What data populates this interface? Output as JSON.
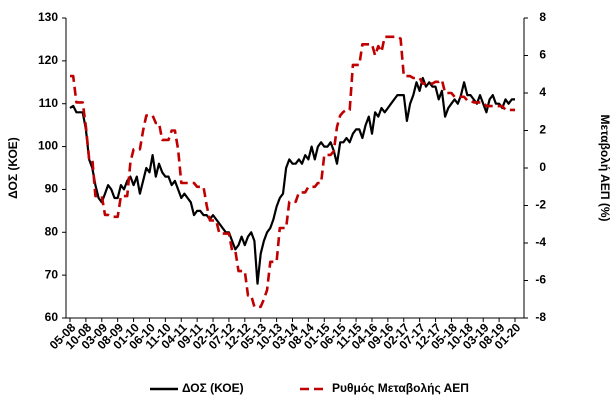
{
  "chart_data": {
    "type": "line",
    "y_label": "ΔΟΣ (ΚΟΕ)",
    "y2_label": "Μεταβολή ΑΕΠ (%)",
    "categories": [
      "05-08",
      null,
      null,
      null,
      null,
      "10-08",
      null,
      null,
      null,
      null,
      "03-09",
      null,
      null,
      null,
      null,
      "08-09",
      null,
      null,
      null,
      null,
      "01-10",
      null,
      null,
      null,
      null,
      "06-10",
      null,
      null,
      null,
      null,
      "11-10",
      null,
      null,
      null,
      null,
      "04-11",
      null,
      null,
      null,
      null,
      "09-11",
      null,
      null,
      null,
      null,
      "02-12",
      null,
      null,
      null,
      null,
      "07-12",
      null,
      null,
      null,
      null,
      "12-12",
      null,
      null,
      null,
      null,
      "05-13",
      null,
      null,
      null,
      null,
      "10-13",
      null,
      null,
      null,
      null,
      "03-14",
      null,
      null,
      null,
      null,
      "08-14",
      null,
      null,
      null,
      null,
      "01-15",
      null,
      null,
      null,
      null,
      "06-15",
      null,
      null,
      null,
      null,
      "11-15",
      null,
      null,
      null,
      null,
      "04-16",
      null,
      null,
      null,
      null,
      "09-16",
      null,
      null,
      null,
      null,
      "02-17",
      null,
      null,
      null,
      null,
      "07-17",
      null,
      null,
      null,
      null,
      "12-17",
      null,
      null,
      null,
      null,
      "05-18",
      null,
      null,
      null,
      null,
      "10-18",
      null,
      null,
      null,
      null,
      "03-19",
      null,
      null,
      null,
      null,
      "08-19",
      null,
      null,
      null,
      null,
      "01-20"
    ],
    "series": [
      {
        "name": "ΔΟΣ (ΚΟΕ)",
        "color": "#000000",
        "dashed": false,
        "values": [
          109,
          109.5,
          108,
          108,
          108,
          104,
          97,
          95,
          91,
          88,
          87,
          89,
          91,
          90,
          88,
          88,
          91,
          90,
          92,
          93,
          91,
          93,
          89,
          92,
          95,
          94,
          98,
          93,
          96,
          94,
          93,
          93,
          91,
          92,
          90,
          88,
          89,
          88,
          87,
          84,
          85,
          85,
          84,
          84,
          83,
          84,
          83,
          82,
          81,
          80,
          80,
          78,
          76,
          77,
          79,
          77,
          79,
          80,
          78,
          68,
          75,
          78,
          80,
          81,
          83,
          86,
          88,
          89,
          95,
          97,
          96,
          96,
          97,
          96,
          98,
          97,
          100,
          97,
          100,
          101,
          100,
          100,
          101,
          99,
          96,
          101,
          101,
          102,
          101,
          103,
          104,
          104,
          102,
          105,
          107,
          103,
          108,
          107,
          109,
          108,
          109,
          110,
          111,
          112,
          112,
          112,
          106,
          110,
          112,
          115,
          113,
          116,
          114,
          115,
          114,
          114,
          111,
          113,
          107,
          109,
          110,
          111,
          110,
          112,
          115,
          112,
          112,
          111,
          110,
          112,
          110,
          108,
          111,
          112,
          110,
          110,
          109,
          111,
          110,
          111,
          111
        ]
      },
      {
        "name": "Ρυθμός Μεταβολής ΑΕΠ",
        "color": "#c00000",
        "dashed": true,
        "axis": "y2",
        "values": [
          4.9,
          4.9,
          3.5,
          3.5,
          3.5,
          2.2,
          0.5,
          0.5,
          -1.5,
          -1.5,
          -1.5,
          -2.5,
          -2.5,
          -2.6,
          -2.6,
          -2.6,
          -1.5,
          -1.5,
          -1.5,
          0.3,
          1,
          1,
          1,
          2,
          2.8,
          2.8,
          2.8,
          2.4,
          2.4,
          1.5,
          1.5,
          1.5,
          2,
          2,
          1,
          -0.8,
          -0.8,
          -0.8,
          -0.8,
          -0.8,
          -1,
          -1,
          -1,
          -2,
          -2.8,
          -2.8,
          -2.8,
          -3.5,
          -3.5,
          -3.5,
          -3.5,
          -4.4,
          -4.4,
          -5.5,
          -5.5,
          -5.5,
          -6.8,
          -6.8,
          -7.4,
          -7.4,
          -7.4,
          -7,
          -6.5,
          -5,
          -5,
          -5,
          -3.2,
          -3.2,
          -3.2,
          -1.8,
          -1.8,
          -1.8,
          -1.3,
          -1.3,
          -1.3,
          -1,
          -1,
          -1,
          -0.8,
          -0.8,
          0.7,
          0.7,
          0.7,
          0.9,
          2.2,
          2.8,
          3,
          3.1,
          3.1,
          5.5,
          5.5,
          5.5,
          6.6,
          6.6,
          6.6,
          6.6,
          6,
          6.5,
          6.2,
          7,
          7,
          7,
          7,
          7,
          6.9,
          4.9,
          4.9,
          4.9,
          4.8,
          4.8,
          4.8,
          4.5,
          4.5,
          4.5,
          4.5,
          4.6,
          4.6,
          4.7,
          4,
          4,
          4,
          3.8,
          3.8,
          3.8,
          3.8,
          3.6,
          3.6,
          3.5,
          3.5,
          3.5,
          3.5,
          3.3,
          3.3,
          3.3,
          3.3,
          3.3,
          3.3,
          3.1,
          3.1,
          3.1,
          3.1
        ]
      }
    ],
    "ylim": [
      60,
      130
    ],
    "yticks": [
      60,
      70,
      80,
      90,
      100,
      110,
      120,
      130
    ],
    "y2lim": [
      -8,
      8
    ],
    "y2ticks": [
      -8,
      -6,
      -4,
      -2,
      0,
      2,
      4,
      6,
      8
    ],
    "grid": false,
    "legend": "bottom"
  }
}
